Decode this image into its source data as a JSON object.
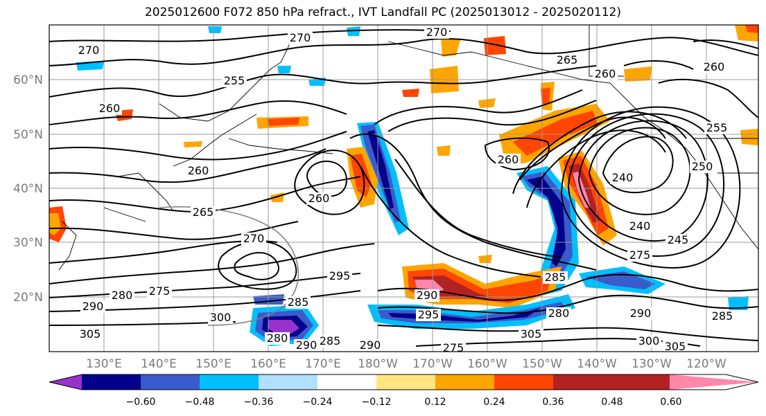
{
  "title": "2025012600 F072 850 hPa refract., IVT Landfall PC (2025013012 - 2025020112)",
  "lat_labels": [
    "60°N",
    "50°N",
    "40°N",
    "30°N",
    "20°N"
  ],
  "lon_labels": [
    "130°E",
    "140°E",
    "150°E",
    "160°E",
    "170°E",
    "180°W",
    "170°W",
    "160°W",
    "150°W",
    "140°W",
    "130°W",
    "120°W"
  ],
  "colorbar": {
    "ticks": [
      "−0.60",
      "−0.48",
      "−0.36",
      "−0.24",
      "−0.12",
      "0.12",
      "0.24",
      "0.36",
      "0.48",
      "0.60"
    ],
    "colors": [
      "#9932cc",
      "#00008b",
      "#3a5bcc",
      "#00bfff",
      "#b0e0ff",
      "#ffffff",
      "#ffe680",
      "#ffa500",
      "#ff4500",
      "#b22222",
      "#ff88aa"
    ]
  },
  "contour_labels": [
    "270",
    "270",
    "270",
    "255",
    "265",
    "260",
    "260",
    "260",
    "260",
    "250",
    "260",
    "260",
    "240",
    "265",
    "240",
    "245",
    "270",
    "275",
    "285",
    "295",
    "290",
    "280",
    "275",
    "290",
    "300",
    "305",
    "295",
    "285",
    "280",
    "290",
    "285",
    "290",
    "275",
    "305",
    "300",
    "305",
    "285",
    "290",
    "280",
    "255"
  ]
}
